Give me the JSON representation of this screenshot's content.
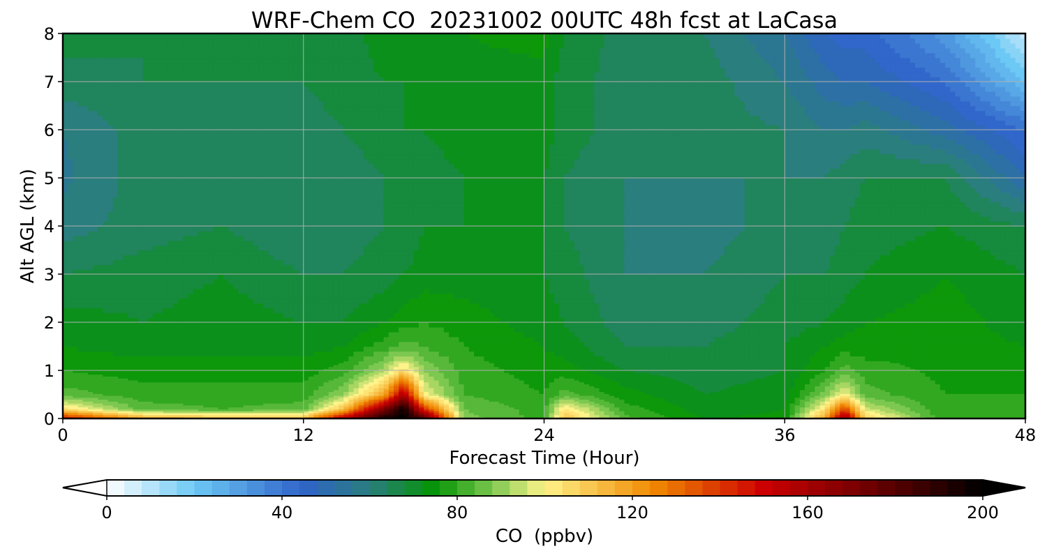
{
  "chart_data": {
    "type": "heatmap",
    "subtype": "filled-contour time-height cross section",
    "title": "WRF-Chem CO  20231002 00UTC 48h fcst at LaCasa",
    "xlabel": "Forecast Time (Hour)",
    "ylabel": "Alt AGL (km)",
    "xlim": [
      0,
      48
    ],
    "ylim": [
      0,
      8
    ],
    "xticks": [
      0,
      12,
      24,
      36,
      48
    ],
    "yticks": [
      0,
      1,
      2,
      3,
      4,
      5,
      6,
      7,
      8
    ],
    "grid": true,
    "colorbar": {
      "label": "CO  (ppbv)",
      "range": [
        0,
        200
      ],
      "ticks": [
        0,
        40,
        80,
        120,
        160,
        200
      ],
      "extend": "both",
      "orientation": "horizontal",
      "placement": "bottom",
      "color_stops": [
        {
          "value": 0,
          "color": "#ffffff"
        },
        {
          "value": 20,
          "color": "#6cc8f5"
        },
        {
          "value": 45,
          "color": "#2f63c8"
        },
        {
          "value": 60,
          "color": "#2a7e7e"
        },
        {
          "value": 75,
          "color": "#049404"
        },
        {
          "value": 88,
          "color": "#7cc850"
        },
        {
          "value": 100,
          "color": "#fff38a"
        },
        {
          "value": 125,
          "color": "#f08800"
        },
        {
          "value": 150,
          "color": "#cc0000"
        },
        {
          "value": 175,
          "color": "#6a0000"
        },
        {
          "value": 200,
          "color": "#000000"
        }
      ]
    },
    "field_samples": {
      "time_hours": [
        0,
        4,
        8,
        12,
        14,
        16,
        17,
        18,
        20,
        24,
        25,
        28,
        32,
        36,
        38,
        39,
        40,
        44,
        48
      ],
      "altitude_km": [
        0,
        0.2,
        0.5,
        1,
        1.5,
        2,
        3,
        4,
        5,
        6,
        7,
        8
      ],
      "co_ppbv": [
        [
          150,
          120,
          115,
          115,
          160,
          198,
          200,
          188,
          88,
          80,
          112,
          84,
          74,
          75,
          120,
          168,
          110,
          78,
          80
        ],
        [
          105,
          84,
          82,
          84,
          112,
          170,
          198,
          142,
          86,
          80,
          104,
          80,
          72,
          74,
          104,
          138,
          96,
          78,
          78
        ],
        [
          84,
          80,
          80,
          80,
          90,
          118,
          160,
          100,
          82,
          78,
          84,
          76,
          70,
          72,
          88,
          100,
          84,
          78,
          78
        ],
        [
          78,
          76,
          76,
          76,
          80,
          92,
          106,
          90,
          80,
          76,
          76,
          70,
          68,
          70,
          78,
          84,
          80,
          77,
          76
        ],
        [
          74,
          72,
          72,
          72,
          74,
          80,
          84,
          82,
          78,
          74,
          72,
          66,
          66,
          70,
          74,
          76,
          76,
          76,
          74
        ],
        [
          72,
          70,
          72,
          70,
          70,
          74,
          76,
          78,
          76,
          72,
          70,
          64,
          64,
          68,
          70,
          72,
          74,
          76,
          72
        ],
        [
          66,
          68,
          70,
          66,
          66,
          68,
          70,
          72,
          72,
          70,
          68,
          62,
          62,
          66,
          66,
          68,
          70,
          74,
          70
        ],
        [
          60,
          64,
          66,
          62,
          64,
          66,
          66,
          70,
          70,
          70,
          66,
          62,
          60,
          64,
          64,
          66,
          68,
          70,
          66
        ],
        [
          57,
          64,
          64,
          62,
          64,
          66,
          66,
          68,
          70,
          70,
          66,
          62,
          62,
          62,
          62,
          64,
          66,
          66,
          50
        ],
        [
          58,
          64,
          62,
          64,
          66,
          68,
          70,
          70,
          72,
          72,
          68,
          64,
          64,
          62,
          58,
          58,
          60,
          52,
          42
        ],
        [
          64,
          66,
          66,
          66,
          68,
          70,
          70,
          72,
          72,
          72,
          68,
          64,
          64,
          58,
          52,
          50,
          50,
          42,
          22
        ],
        [
          68,
          66,
          66,
          66,
          68,
          72,
          72,
          74,
          74,
          76,
          70,
          64,
          62,
          54,
          46,
          44,
          44,
          32,
          8
        ]
      ]
    }
  }
}
